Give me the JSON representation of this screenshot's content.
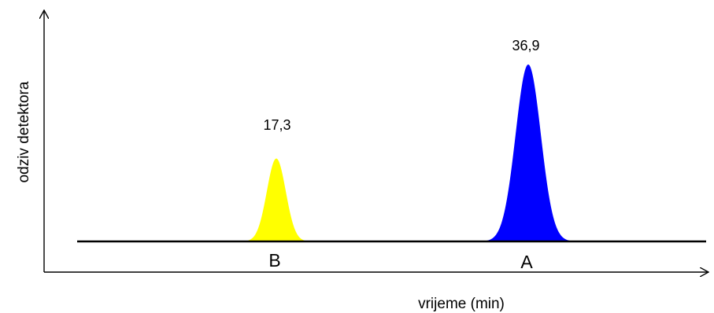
{
  "chart_data": {
    "type": "area",
    "title": "",
    "xlabel": "vrijeme (min)",
    "ylabel": "odziv detektora",
    "grid": false,
    "legend": "none",
    "peaks": [
      {
        "name": "B",
        "value_label": "17,3",
        "height": 17.3,
        "color": "#ffff00"
      },
      {
        "name": "A",
        "value_label": "36,9",
        "height": 36.9,
        "color": "#0000ff"
      }
    ]
  }
}
